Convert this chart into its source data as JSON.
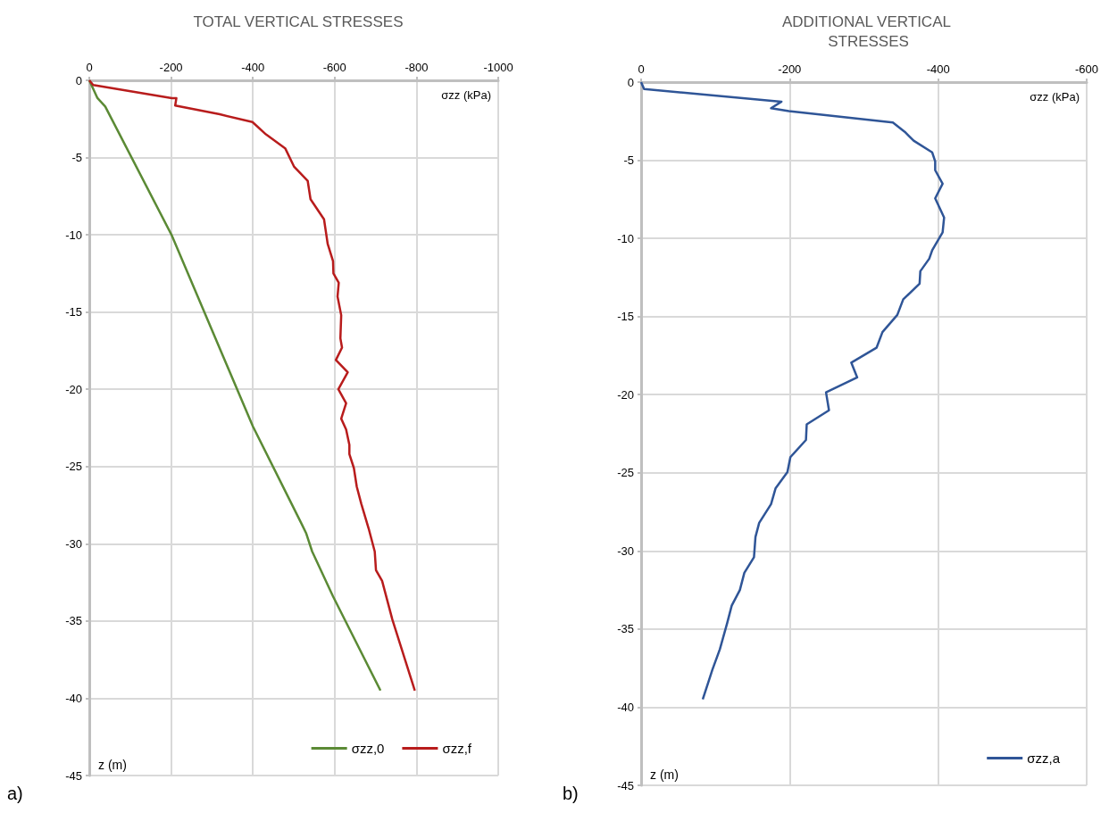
{
  "chart_data": [
    {
      "type": "line",
      "title": "TOTAL VERTICAL STRESSES",
      "xlabel": "σzz (kPa)",
      "ylabel": "z (m)",
      "annotations": [
        "a)"
      ],
      "xlim": [
        0,
        -1000
      ],
      "xticks": [
        0,
        -200,
        -400,
        -600,
        -800,
        -1000
      ],
      "ylim": [
        -45,
        0
      ],
      "yticks": [
        0,
        -5,
        -10,
        -15,
        -20,
        -25,
        -30,
        -35,
        -40,
        -45
      ],
      "grid": true,
      "legend": "bottom right",
      "series": [
        {
          "name": "σzz,0",
          "color": "#5b8a35",
          "x": [
            0,
            -20,
            -39,
            -201,
            -400,
            -519,
            -530,
            -545,
            -596,
            -712
          ],
          "values": [
            0,
            -1.15,
            -1.7,
            -10,
            -22.4,
            -28.7,
            -29.3,
            -30.5,
            -33.4,
            -39.5
          ]
        },
        {
          "name": "σzz,f",
          "color": "#b81c1c",
          "x": [
            0,
            -9.5,
            -202,
            -213,
            -210,
            -319,
            -399,
            -432,
            -479,
            -501,
            -534,
            -541,
            -574,
            -583,
            -596,
            -597,
            -610,
            -607,
            -616,
            -614,
            -618,
            -603,
            -632,
            -609,
            -628,
            -616,
            -628,
            -636,
            -636,
            -647,
            -654,
            -665,
            -683,
            -698,
            -701,
            -716,
            -741,
            -796
          ],
          "values": [
            0,
            -0.3,
            -1.15,
            -1.15,
            -1.63,
            -2.2,
            -2.7,
            -3.5,
            -4.4,
            -5.6,
            -6.5,
            -7.7,
            -9,
            -10.6,
            -11.7,
            -12.5,
            -13.1,
            -14,
            -15.2,
            -16.7,
            -17.3,
            -18.1,
            -18.9,
            -20,
            -20.9,
            -21.9,
            -22.6,
            -23.6,
            -24.2,
            -25.1,
            -26.3,
            -27.4,
            -29,
            -30.5,
            -31.7,
            -32.4,
            -34.9,
            -39.5
          ]
        }
      ]
    },
    {
      "type": "line",
      "title": "ADDITIONAL VERTICAL STRESSES",
      "xlabel": "σzz (kPa)",
      "ylabel": "z (m)",
      "annotations": [
        "b)"
      ],
      "xlim": [
        0,
        -600
      ],
      "xticks": [
        0,
        -200,
        -400,
        -600
      ],
      "ylim": [
        -45,
        0
      ],
      "yticks": [
        0,
        -5,
        -10,
        -15,
        -20,
        -25,
        -30,
        -35,
        -40,
        -45
      ],
      "grid": true,
      "legend": "bottom right",
      "series": [
        {
          "name": "σzz,a",
          "color": "#2f5597",
          "x": [
            0,
            -4,
            -189,
            -175,
            -199,
            -339,
            -355,
            -367,
            -392,
            -396,
            -396,
            -406,
            -396,
            -408,
            -406,
            -392,
            -388,
            -376,
            -375,
            -353,
            -345,
            -325,
            -317,
            -283,
            -291,
            -249,
            -253,
            -223,
            -222,
            -201,
            -197,
            -181,
            -175,
            -159,
            -154,
            -152,
            -139,
            -133,
            -122,
            -116,
            -106,
            -96,
            -83
          ],
          "values": [
            0,
            -0.44,
            -1.25,
            -1.67,
            -1.86,
            -2.58,
            -3.18,
            -3.75,
            -4.5,
            -5.08,
            -5.64,
            -6.5,
            -7.44,
            -8.67,
            -9.62,
            -10.76,
            -11.3,
            -12.1,
            -12.9,
            -13.9,
            -14.9,
            -16,
            -17,
            -17.95,
            -18.9,
            -19.85,
            -21,
            -21.9,
            -22.9,
            -24,
            -24.96,
            -26,
            -27,
            -28.2,
            -29.1,
            -30.4,
            -31.4,
            -32.5,
            -33.5,
            -34.6,
            -36.3,
            -37.6,
            -39.5
          ]
        }
      ]
    }
  ]
}
